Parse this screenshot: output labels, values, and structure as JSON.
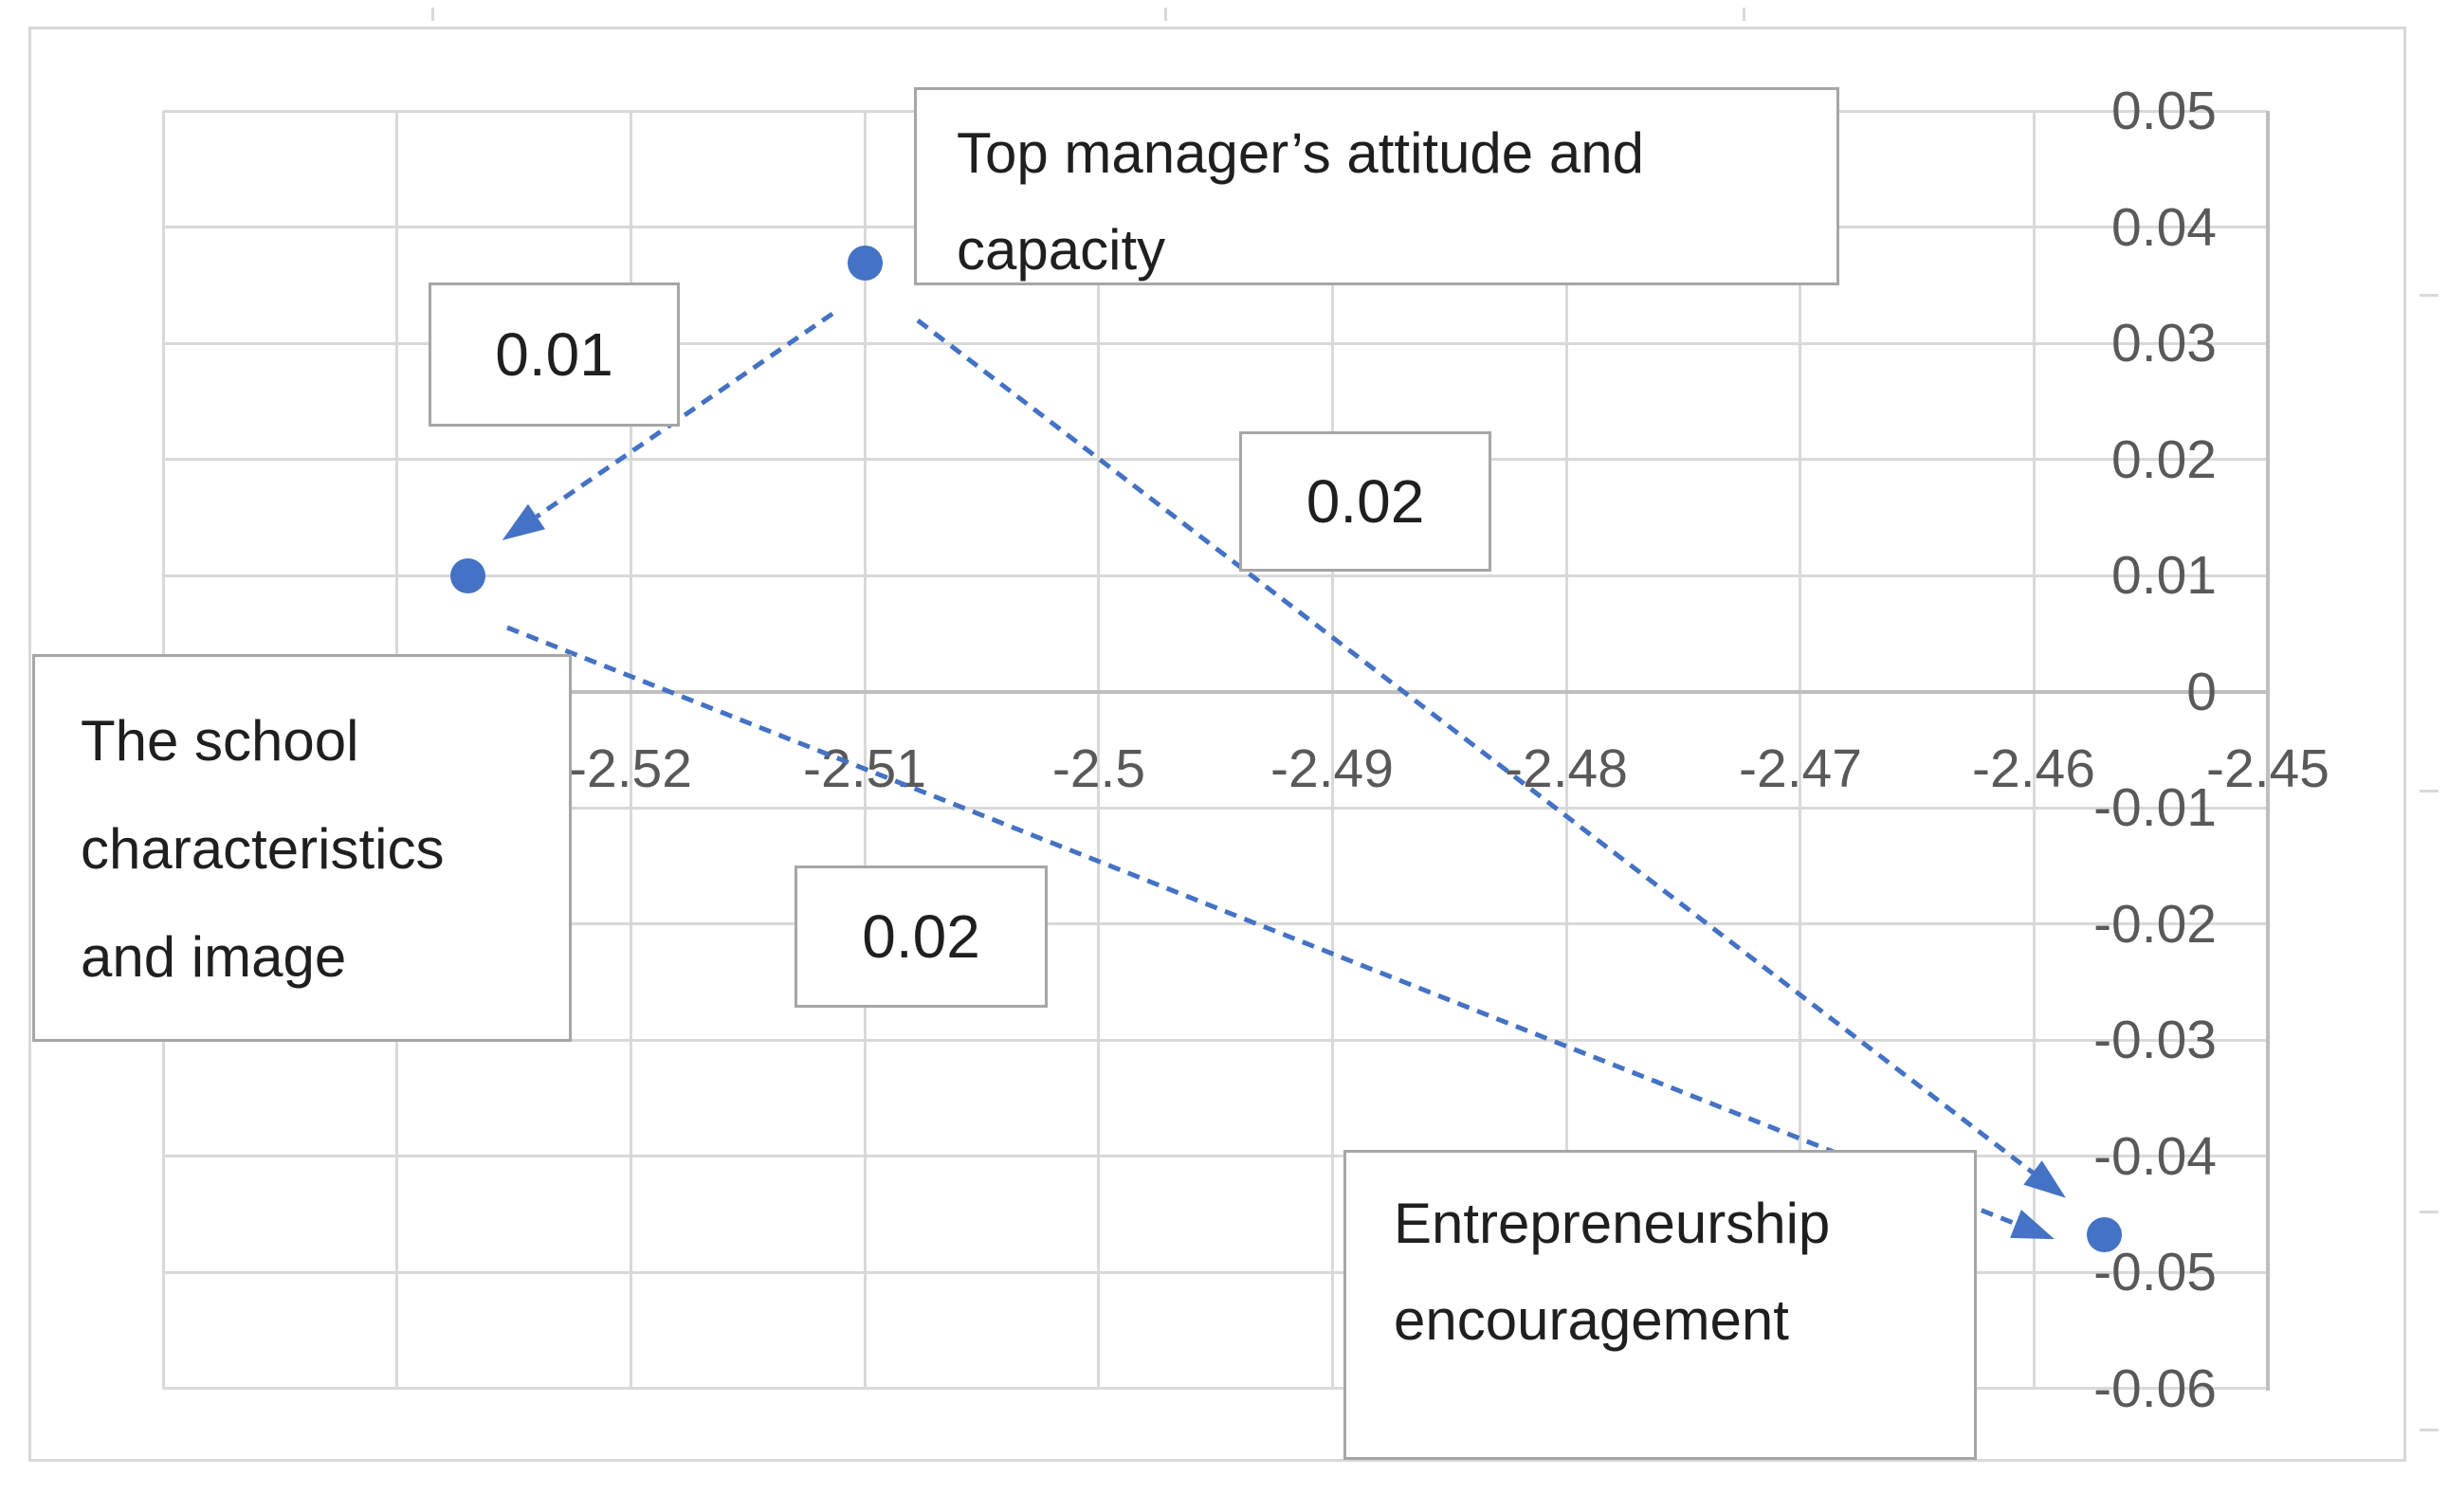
{
  "chart_data": {
    "type": "scatter",
    "title": "",
    "points": [
      {
        "name": "Top manager’s attitude and capacity",
        "x": -2.51,
        "y": 0.037
      },
      {
        "name": "The school characteristics and image",
        "x": -2.527,
        "y": 0.01
      },
      {
        "name": "Entrepreneurship encouragement",
        "x": -2.457,
        "y": -0.047
      }
    ],
    "arrows": [
      {
        "from": "Top manager’s attitude and capacity",
        "to": "The school characteristics and image",
        "label": "0.01"
      },
      {
        "from": "Top manager’s attitude and capacity",
        "to": "Entrepreneurship encouragement",
        "label": "0.02"
      },
      {
        "from": "The school characteristics and image",
        "to": "Entrepreneurship encouragement",
        "label": "0.02"
      }
    ],
    "xlim": [
      -2.54,
      -2.45
    ],
    "ylim": [
      -0.06,
      0.05
    ],
    "x_tick_step": 0.01,
    "y_tick_step": 0.01,
    "grid": true,
    "legend": "none",
    "marker_color": "#4472C4"
  },
  "axes": {
    "x_ticks": [
      "-2.52",
      "-2.51",
      "-2.5",
      "-2.49",
      "-2.48",
      "-2.47",
      "-2.46",
      "-2.45"
    ],
    "y_ticks": [
      "0.05",
      "0.04",
      "0.03",
      "0.02",
      "0.01",
      "0",
      "-0.01",
      "-0.02",
      "-0.03",
      "-0.04",
      "-0.05",
      "-0.06"
    ]
  },
  "annotations": {
    "top_manager_label": "Top manager’s attitude and\ncapacity",
    "school_label": "The school\ncharacteristics\nand image",
    "entrepreneurship_label": "Entrepreneurship\nencouragement",
    "edge_label_01": "0.01",
    "edge_label_02_upper": "0.02",
    "edge_label_02_lower": "0.02"
  },
  "colors": {
    "accent_blue": "#4472C4",
    "gridline": "#D9D9D9",
    "axis_line": "#BFBFBF",
    "axis_label_text": "#595959",
    "box_border": "#A6A6A6",
    "box_text": "#1F1F1F"
  }
}
